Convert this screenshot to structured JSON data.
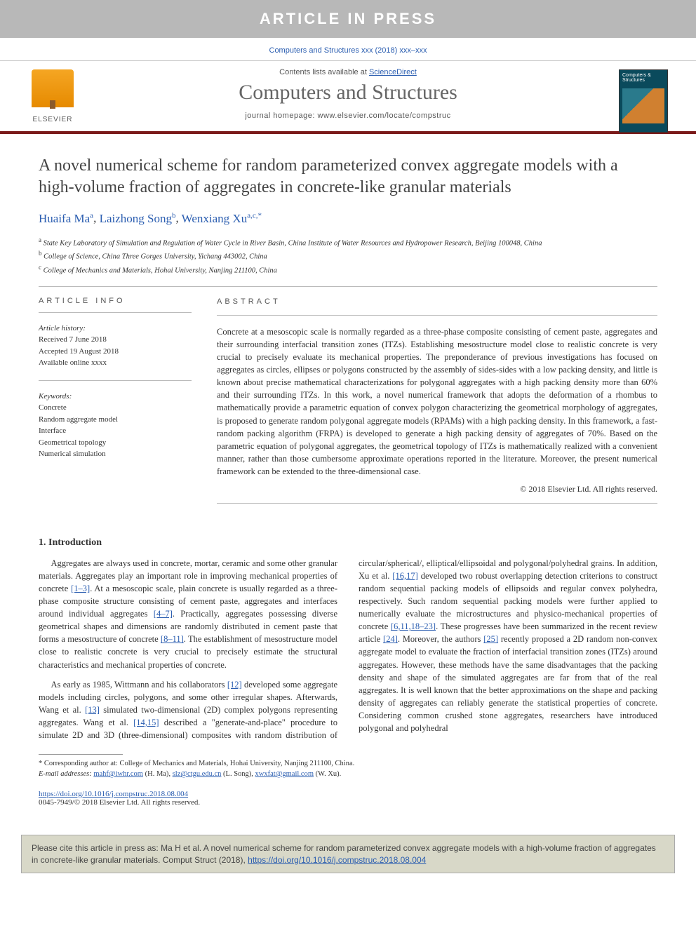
{
  "banner": "ARTICLE IN PRESS",
  "citation_header": "Computers and Structures xxx (2018) xxx–xxx",
  "contents_prefix": "Contents lists available at ",
  "contents_link": "ScienceDirect",
  "journal_name": "Computers and Structures",
  "homepage_prefix": "journal homepage: ",
  "homepage_url": "www.elsevier.com/locate/compstruc",
  "publisher_label": "ELSEVIER",
  "cover_label": "Computers & Structures",
  "title": "A novel numerical scheme for random parameterized convex aggregate models with a high-volume fraction of aggregates in concrete-like granular materials",
  "authors": [
    {
      "name": "Huaifa Ma",
      "affil": "a"
    },
    {
      "name": "Laizhong Song",
      "affil": "b"
    },
    {
      "name": "Wenxiang Xu",
      "affil": "a,c,",
      "corr": "*"
    }
  ],
  "affiliations": [
    {
      "key": "a",
      "text": "State Key Laboratory of Simulation and Regulation of Water Cycle in River Basin, China Institute of Water Resources and Hydropower Research, Beijing 100048, China"
    },
    {
      "key": "b",
      "text": "College of Science, China Three Gorges University, Yichang 443002, China"
    },
    {
      "key": "c",
      "text": "College of Mechanics and Materials, Hohai University, Nanjing 211100, China"
    }
  ],
  "article_info_label": "article info",
  "abstract_label": "abstract",
  "history_label": "Article history:",
  "history": {
    "received": "Received 7 June 2018",
    "accepted": "Accepted 19 August 2018",
    "online": "Available online xxxx"
  },
  "keywords_label": "Keywords:",
  "keywords": [
    "Concrete",
    "Random aggregate model",
    "Interface",
    "Geometrical topology",
    "Numerical simulation"
  ],
  "abstract_text": "Concrete at a mesoscopic scale is normally regarded as a three-phase composite consisting of cement paste, aggregates and their surrounding interfacial transition zones (ITZs). Establishing mesostructure model close to realistic concrete is very crucial to precisely evaluate its mechanical properties. The preponderance of previous investigations has focused on aggregates as circles, ellipses or polygons constructed by the assembly of sides-sides with a low packing density, and little is known about precise mathematical characterizations for polygonal aggregates with a high packing density more than 60% and their surrounding ITZs. In this work, a novel numerical framework that adopts the deformation of a rhombus to mathematically provide a parametric equation of convex polygon characterizing the geometrical morphology of aggregates, is proposed to generate random polygonal aggregate models (RPAMs) with a high packing density. In this framework, a fast-random packing algorithm (FRPA) is developed to generate a high packing density of aggregates of 70%. Based on the parametric equation of polygonal aggregates, the geometrical topology of ITZs is mathematically realized with a convenient manner, rather than those cumbersome approximate operations reported in the literature. Moreover, the present numerical framework can be extended to the three-dimensional case.",
  "abstract_copyright": "© 2018 Elsevier Ltd. All rights reserved.",
  "intro_heading": "1. Introduction",
  "intro_p1_a": "Aggregates are always used in concrete, mortar, ceramic and some other granular materials. Aggregates play an important role in improving mechanical properties of concrete ",
  "intro_ref1": "[1–3]",
  "intro_p1_b": ". At a mesoscopic scale, plain concrete is usually regarded as a three-phase composite structure consisting of cement paste, aggregates and interfaces around individual aggregates ",
  "intro_ref2": "[4–7]",
  "intro_p1_c": ". Practically, aggregates possessing diverse geometrical shapes and dimensions are randomly distributed in cement paste that forms a mesostructure of concrete ",
  "intro_ref3": "[8–11]",
  "intro_p1_d": ". The establishment of mesostructure model close to realistic concrete is very crucial to precisely estimate the structural characteristics and mechanical properties of concrete.",
  "intro_p2_a": "As early as 1985, Wittmann and his collaborators ",
  "intro_ref4": "[12]",
  "intro_p2_b": " developed some aggregate models including circles, polygons, and some other irregular shapes. Afterwards, Wang et al. ",
  "intro_ref5": "[13]",
  "intro_p2_c": " simulated two-",
  "intro_p2_cont_a": "dimensional (2D) complex polygons representing aggregates. Wang et al. ",
  "intro_ref6": "[14,15]",
  "intro_p2_cont_b": " described a \"generate-and-place\" procedure to simulate 2D and 3D (three-dimensional) composites with random distribution of circular/spherical/, elliptical/ellipsoidal and polygonal/polyhedral grains. In addition, Xu et al. ",
  "intro_ref7": "[16,17]",
  "intro_p2_cont_c": " developed two robust overlapping detection criterions to construct random sequential packing models of ellipsoids and regular convex polyhedra, respectively. Such random sequential packing models were further applied to numerically evaluate the microstructures and physico-mechanical properties of concrete ",
  "intro_ref8": "[6,11,18–23]",
  "intro_p2_cont_d": ". These progresses have been summarized in the recent review article ",
  "intro_ref9": "[24]",
  "intro_p2_cont_e": ". Moreover, the authors ",
  "intro_ref10": "[25]",
  "intro_p2_cont_f": " recently proposed a 2D random non-convex aggregate model to evaluate the fraction of interfacial transition zones (ITZs) around aggregates. However, these methods have the same disadvantages that the packing density and shape of the simulated aggregates are far from that of the real aggregates. It is well known that the better approximations on the shape and packing density of aggregates can reliably generate the statistical properties of concrete. Considering common crushed stone aggregates, researchers have introduced polygonal and polyhedral",
  "corresp_label": "* Corresponding author at: College of Mechanics and Materials, Hohai University, Nanjing 211100, China.",
  "email_label": "E-mail addresses: ",
  "emails": [
    {
      "addr": "mahf@iwhr.com",
      "who": "(H. Ma)"
    },
    {
      "addr": "slz@ctgu.edu.cn",
      "who": "(L. Song)"
    },
    {
      "addr": "xwxfat@gmail.com",
      "who": "(W. Xu)"
    }
  ],
  "doi": "https://doi.org/10.1016/j.compstruc.2018.08.004",
  "issn_line": "0045-7949/© 2018 Elsevier Ltd. All rights reserved.",
  "cite_box_a": "Please cite this article in press as: Ma H et al. A novel numerical scheme for random parameterized convex aggregate models with a high-volume fraction of aggregates in concrete-like granular materials. Comput Struct (2018), ",
  "cite_box_link": "https://doi.org/10.1016/j.compstruc.2018.08.004"
}
